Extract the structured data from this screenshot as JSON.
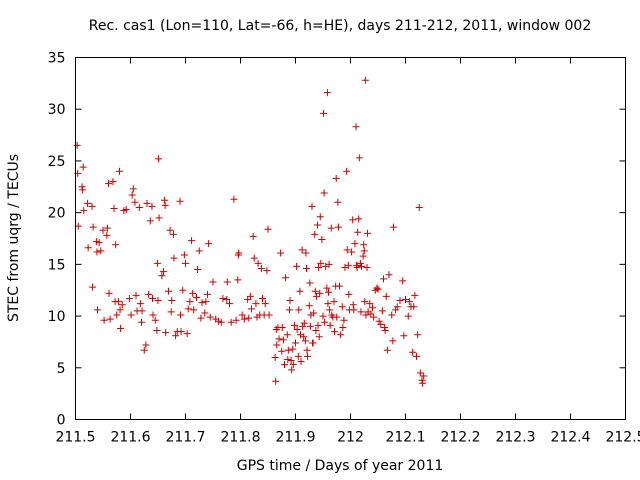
{
  "chart_data": {
    "type": "scatter",
    "title": "Rec. cas1 (Lon=110, Lat=-66, h=HE), days 211-212, 2011, window 002",
    "xlabel": "GPS time / Days of year 2011",
    "ylabel": "STEC from uqrg / TECUs",
    "xlim": [
      211.5,
      212.5
    ],
    "ylim": [
      0,
      35
    ],
    "xticks": [
      211.5,
      211.6,
      211.7,
      211.8,
      211.9,
      212.0,
      212.1,
      212.2,
      212.3,
      212.4,
      212.5
    ],
    "xtick_labels": [
      "211.5",
      "211.6",
      "211.7",
      "211.8",
      "211.9",
      "212",
      "212.1",
      "212.2",
      "212.3",
      "212.4",
      "212.5"
    ],
    "yticks": [
      0,
      5,
      10,
      15,
      20,
      25,
      30,
      35
    ],
    "ytick_labels": [
      "0",
      "5",
      "10",
      "15",
      "20",
      "25",
      "30",
      "35"
    ],
    "marker": "+",
    "color": "#cc0000",
    "points": [
      [
        211.503,
        26.5
      ],
      [
        211.504,
        23.8
      ],
      [
        211.505,
        18.7
      ],
      [
        211.512,
        22.5
      ],
      [
        211.513,
        22.2
      ],
      [
        211.514,
        24.4
      ],
      [
        211.515,
        20.2
      ],
      [
        211.522,
        20.9
      ],
      [
        211.523,
        16.6
      ],
      [
        211.53,
        20.6
      ],
      [
        211.531,
        12.8
      ],
      [
        211.532,
        18.6
      ],
      [
        211.538,
        17.2
      ],
      [
        211.539,
        16.2
      ],
      [
        211.54,
        10.6
      ],
      [
        211.543,
        17.1
      ],
      [
        211.546,
        16.3
      ],
      [
        211.55,
        18.3
      ],
      [
        211.552,
        9.6
      ],
      [
        211.557,
        17.8
      ],
      [
        211.558,
        18.5
      ],
      [
        211.56,
        22.8
      ],
      [
        211.561,
        12.2
      ],
      [
        211.563,
        9.7
      ],
      [
        211.568,
        23.0
      ],
      [
        211.57,
        20.4
      ],
      [
        211.572,
        11.4
      ],
      [
        211.573,
        16.9
      ],
      [
        211.575,
        10.1
      ],
      [
        211.578,
        11.4
      ],
      [
        211.58,
        24.0
      ],
      [
        211.581,
        10.6
      ],
      [
        211.582,
        8.8
      ],
      [
        211.585,
        11.1
      ],
      [
        211.588,
        20.2
      ],
      [
        211.592,
        20.3
      ],
      [
        211.598,
        11.7
      ],
      [
        211.601,
        10.1
      ],
      [
        211.603,
        21.7
      ],
      [
        211.605,
        22.3
      ],
      [
        211.608,
        21.0
      ],
      [
        211.61,
        12.0
      ],
      [
        211.612,
        10.5
      ],
      [
        211.616,
        20.5
      ],
      [
        211.618,
        11.2
      ],
      [
        211.62,
        9.4
      ],
      [
        211.621,
        10.5
      ],
      [
        211.625,
        6.7
      ],
      [
        211.628,
        7.2
      ],
      [
        211.63,
        20.9
      ],
      [
        211.633,
        12.1
      ],
      [
        211.636,
        19.2
      ],
      [
        211.639,
        20.6
      ],
      [
        211.64,
        11.7
      ],
      [
        211.641,
        10.1
      ],
      [
        211.645,
        9.6
      ],
      [
        211.648,
        8.6
      ],
      [
        211.649,
        15.1
      ],
      [
        211.65,
        11.5
      ],
      [
        211.651,
        25.2
      ],
      [
        211.652,
        19.5
      ],
      [
        211.657,
        13.9
      ],
      [
        211.66,
        14.3
      ],
      [
        211.662,
        21.2
      ],
      [
        211.663,
        20.7
      ],
      [
        211.664,
        8.4
      ],
      [
        211.669,
        12.4
      ],
      [
        211.672,
        18.3
      ],
      [
        211.674,
        10.4
      ],
      [
        211.675,
        11.5
      ],
      [
        211.678,
        17.9
      ],
      [
        211.679,
        15.6
      ],
      [
        211.682,
        8.1
      ],
      [
        211.685,
        8.5
      ],
      [
        211.69,
        21.1
      ],
      [
        211.691,
        10.1
      ],
      [
        211.692,
        8.5
      ],
      [
        211.695,
        12.5
      ],
      [
        211.698,
        15.9
      ],
      [
        211.7,
        15.1
      ],
      [
        211.703,
        8.3
      ],
      [
        211.705,
        10.7
      ],
      [
        211.708,
        11.4
      ],
      [
        211.711,
        17.3
      ],
      [
        211.713,
        12.2
      ],
      [
        211.715,
        10.6
      ],
      [
        211.72,
        11.8
      ],
      [
        211.722,
        14.5
      ],
      [
        211.725,
        16.3
      ],
      [
        211.728,
        9.8
      ],
      [
        211.73,
        11.3
      ],
      [
        211.735,
        10.3
      ],
      [
        211.737,
        11.4
      ],
      [
        211.74,
        12.1
      ],
      [
        211.742,
        17.0
      ],
      [
        211.745,
        9.9
      ],
      [
        211.75,
        13.3
      ],
      [
        211.755,
        9.7
      ],
      [
        211.76,
        9.5
      ],
      [
        211.765,
        9.4
      ],
      [
        211.768,
        11.7
      ],
      [
        211.775,
        11.6
      ],
      [
        211.776,
        13.3
      ],
      [
        211.78,
        11.2
      ],
      [
        211.783,
        9.4
      ],
      [
        211.788,
        21.3
      ],
      [
        211.792,
        9.6
      ],
      [
        211.795,
        13.5
      ],
      [
        211.796,
        15.9
      ],
      [
        211.797,
        16.1
      ],
      [
        211.803,
        10.1
      ],
      [
        211.807,
        9.7
      ],
      [
        211.813,
        11.6
      ],
      [
        211.815,
        9.8
      ],
      [
        211.818,
        11.9
      ],
      [
        211.82,
        10.7
      ],
      [
        211.823,
        17.7
      ],
      [
        211.825,
        15.6
      ],
      [
        211.828,
        11.2
      ],
      [
        211.83,
        9.9
      ],
      [
        211.832,
        15.1
      ],
      [
        211.835,
        10.1
      ],
      [
        211.838,
        14.6
      ],
      [
        211.84,
        11.7
      ],
      [
        211.843,
        10.1
      ],
      [
        211.845,
        11.2
      ],
      [
        211.848,
        14.4
      ],
      [
        211.85,
        18.4
      ],
      [
        211.852,
        10.1
      ],
      [
        211.863,
        6.0
      ],
      [
        211.864,
        3.7
      ],
      [
        211.865,
        8.7
      ],
      [
        211.866,
        7.2
      ],
      [
        211.868,
        8.9
      ],
      [
        211.87,
        7.8
      ],
      [
        211.873,
        16.1
      ],
      [
        211.875,
        6.6
      ],
      [
        211.876,
        8.9
      ],
      [
        211.878,
        7.7
      ],
      [
        211.88,
        5.3
      ],
      [
        211.882,
        13.7
      ],
      [
        211.885,
        8.2
      ],
      [
        211.886,
        5.8
      ],
      [
        211.887,
        6.7
      ],
      [
        211.889,
        10.6
      ],
      [
        211.89,
        11.5
      ],
      [
        211.892,
        5.7
      ],
      [
        211.893,
        4.8
      ],
      [
        211.895,
        6.8
      ],
      [
        211.896,
        5.3
      ],
      [
        211.898,
        9.1
      ],
      [
        211.9,
        7.4
      ],
      [
        211.902,
        14.8
      ],
      [
        211.903,
        8.7
      ],
      [
        211.905,
        6.1
      ],
      [
        211.906,
        10.6
      ],
      [
        211.908,
        12.4
      ],
      [
        211.909,
        8.2
      ],
      [
        211.91,
        5.6
      ],
      [
        211.912,
        16.4
      ],
      [
        211.913,
        9.0
      ],
      [
        211.915,
        8.0
      ],
      [
        211.916,
        9.3
      ],
      [
        211.918,
        7.6
      ],
      [
        211.919,
        16.1
      ],
      [
        211.92,
        14.6
      ],
      [
        211.921,
        6.7
      ],
      [
        211.922,
        6.1
      ],
      [
        211.925,
        11.0
      ],
      [
        211.926,
        13.2
      ],
      [
        211.927,
        9.0
      ],
      [
        211.928,
        10.1
      ],
      [
        211.93,
        20.6
      ],
      [
        211.931,
        7.4
      ],
      [
        211.932,
        7.4
      ],
      [
        211.933,
        10.3
      ],
      [
        211.935,
        17.9
      ],
      [
        211.936,
        12.4
      ],
      [
        211.937,
        8.6
      ],
      [
        211.938,
        11.9
      ],
      [
        211.94,
        18.8
      ],
      [
        211.941,
        9.1
      ],
      [
        211.942,
        14.7
      ],
      [
        211.943,
        8.0
      ],
      [
        211.944,
        12.2
      ],
      [
        211.945,
        19.6
      ],
      [
        211.946,
        15.1
      ],
      [
        211.948,
        17.4
      ],
      [
        211.95,
        10.0
      ],
      [
        211.951,
        29.6
      ],
      [
        211.952,
        21.9
      ],
      [
        211.953,
        9.4
      ],
      [
        211.955,
        14.8
      ],
      [
        211.957,
        12.7
      ],
      [
        211.958,
        31.6
      ],
      [
        211.959,
        11.2
      ],
      [
        211.96,
        12.3
      ],
      [
        211.961,
        15.0
      ],
      [
        211.962,
        10.6
      ],
      [
        211.963,
        9.1
      ],
      [
        211.965,
        18.5
      ],
      [
        211.966,
        10.1
      ],
      [
        211.968,
        9.9
      ],
      [
        211.97,
        11.4
      ],
      [
        211.971,
        8.5
      ],
      [
        211.973,
        12.9
      ],
      [
        211.974,
        23.3
      ],
      [
        211.975,
        9.9
      ],
      [
        211.977,
        21.0
      ],
      [
        211.978,
        18.6
      ],
      [
        211.98,
        12.9
      ],
      [
        211.982,
        8.2
      ],
      [
        211.985,
        10.9
      ],
      [
        211.986,
        8.9
      ],
      [
        211.988,
        9.6
      ],
      [
        211.99,
        14.7
      ],
      [
        211.993,
        24.0
      ],
      [
        211.994,
        16.4
      ],
      [
        211.996,
        14.9
      ],
      [
        211.997,
        12.1
      ],
      [
        211.998,
        10.6
      ],
      [
        212.002,
        16.2
      ],
      [
        212.004,
        19.3
      ],
      [
        212.005,
        11.1
      ],
      [
        212.006,
        10.6
      ],
      [
        212.008,
        17.0
      ],
      [
        212.01,
        28.3
      ],
      [
        212.011,
        14.9
      ],
      [
        212.012,
        14.7
      ],
      [
        212.013,
        18.1
      ],
      [
        212.015,
        19.4
      ],
      [
        212.016,
        25.3
      ],
      [
        212.018,
        15.1
      ],
      [
        212.019,
        10.4
      ],
      [
        212.02,
        14.8
      ],
      [
        212.023,
        15.8
      ],
      [
        212.024,
        16.9
      ],
      [
        212.025,
        16.3
      ],
      [
        212.026,
        11.4
      ],
      [
        212.027,
        32.8
      ],
      [
        212.028,
        10.1
      ],
      [
        212.03,
        14.7
      ],
      [
        212.031,
        18.0
      ],
      [
        212.032,
        10.4
      ],
      [
        212.035,
        11.2
      ],
      [
        212.037,
        10.2
      ],
      [
        212.04,
        10.8
      ],
      [
        212.042,
        9.9
      ],
      [
        212.045,
        12.5
      ],
      [
        212.048,
        12.7
      ],
      [
        212.05,
        12.6
      ],
      [
        212.052,
        9.5
      ],
      [
        212.055,
        9.2
      ],
      [
        212.058,
        10.5
      ],
      [
        212.06,
        13.6
      ],
      [
        212.062,
        8.9
      ],
      [
        212.063,
        8.6
      ],
      [
        212.065,
        11.9
      ],
      [
        212.067,
        6.7
      ],
      [
        212.07,
        14.0
      ],
      [
        212.075,
        10.1
      ],
      [
        212.077,
        7.6
      ],
      [
        212.078,
        18.6
      ],
      [
        212.082,
        10.6
      ],
      [
        212.085,
        10.9
      ],
      [
        212.09,
        11.5
      ],
      [
        212.095,
        13.4
      ],
      [
        212.097,
        8.1
      ],
      [
        212.1,
        11.6
      ],
      [
        212.105,
        10.0
      ],
      [
        212.107,
        11.4
      ],
      [
        212.11,
        10.9
      ],
      [
        212.113,
        6.5
      ],
      [
        212.115,
        10.9
      ],
      [
        212.117,
        12.0
      ],
      [
        212.12,
        6.1
      ],
      [
        212.122,
        8.2
      ],
      [
        212.125,
        20.5
      ],
      [
        212.127,
        4.5
      ],
      [
        212.13,
        3.8
      ],
      [
        212.131,
        3.5
      ],
      [
        212.133,
        4.2
      ]
    ]
  }
}
